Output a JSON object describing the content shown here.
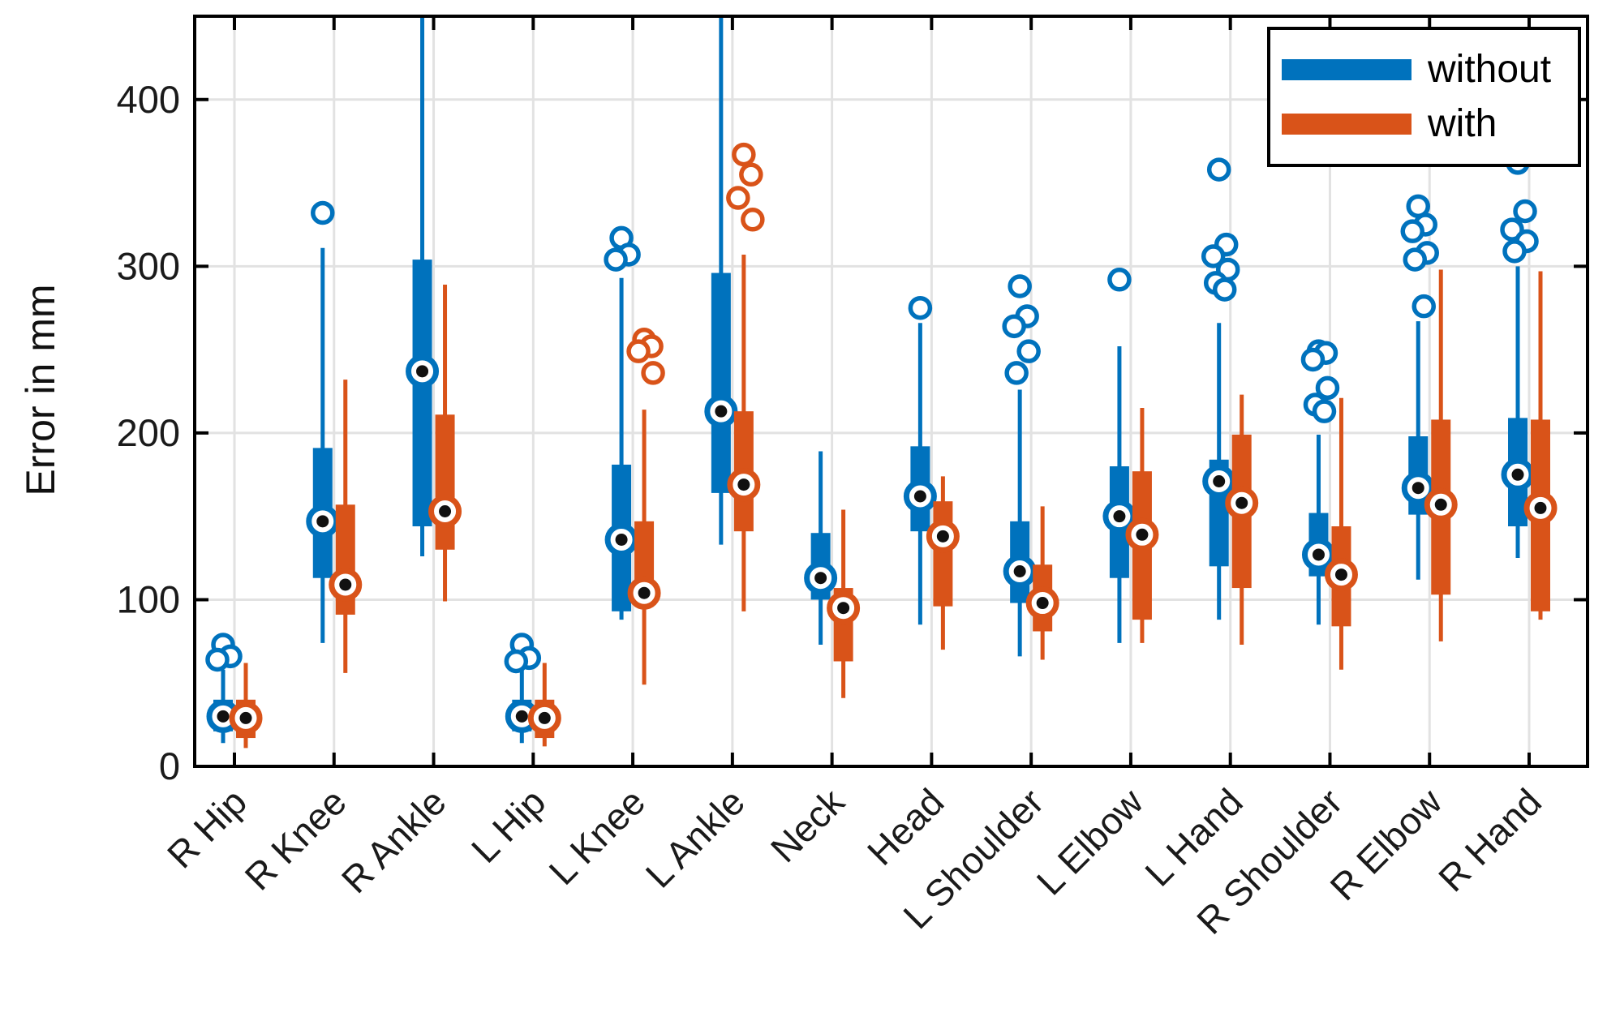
{
  "figure": {
    "background": "#ffffff"
  },
  "chart_data": {
    "type": "boxplot",
    "title": "",
    "xlabel": "",
    "ylabel": "Error in mm",
    "ylim": [
      0,
      450
    ],
    "yticks": [
      0,
      100,
      200,
      300,
      400
    ],
    "grid": true,
    "grid_color": "#e2e2e2",
    "axis_color": "#000000",
    "tick_label_color": "#1a1a1a",
    "categories": [
      "R Hip",
      "R Knee",
      "R Ankle",
      "L Hip",
      "L Knee",
      "L Ankle",
      "Neck",
      "Head",
      "L Shoulder",
      "L Elbow",
      "L Hand",
      "R Shoulder",
      "R Elbow",
      "R Hand"
    ],
    "legend": {
      "position": "top-right",
      "entries": [
        {
          "label": "without",
          "color": "#0072BD"
        },
        {
          "label": "with",
          "color": "#D95319"
        }
      ]
    },
    "series": [
      {
        "name": "without",
        "color": "#0072BD",
        "boxes": [
          {
            "median": 30,
            "q1": 21,
            "q3": 40,
            "whisker_low": 14,
            "whisker_high": 58,
            "outliers": [
              73,
              66,
              64
            ]
          },
          {
            "median": 147,
            "q1": 113,
            "q3": 191,
            "whisker_low": 74,
            "whisker_high": 311,
            "outliers": [
              332
            ]
          },
          {
            "median": 237,
            "q1": 144,
            "q3": 304,
            "whisker_low": 126,
            "whisker_high": 450,
            "clipped_high": true,
            "outliers": []
          },
          {
            "median": 30,
            "q1": 21,
            "q3": 40,
            "whisker_low": 14,
            "whisker_high": 58,
            "outliers": [
              73,
              65,
              63
            ]
          },
          {
            "median": 136,
            "q1": 93,
            "q3": 181,
            "whisker_low": 88,
            "whisker_high": 293,
            "outliers": [
              317,
              307,
              304
            ]
          },
          {
            "median": 213,
            "q1": 164,
            "q3": 296,
            "whisker_low": 133,
            "whisker_high": 450,
            "clipped_high": true,
            "outliers": []
          },
          {
            "median": 113,
            "q1": 100,
            "q3": 140,
            "whisker_low": 73,
            "whisker_high": 189,
            "outliers": []
          },
          {
            "median": 162,
            "q1": 141,
            "q3": 192,
            "whisker_low": 85,
            "whisker_high": 266,
            "outliers": [
              275
            ]
          },
          {
            "median": 117,
            "q1": 98,
            "q3": 147,
            "whisker_low": 66,
            "whisker_high": 226,
            "outliers": [
              288,
              270,
              264,
              249,
              236
            ]
          },
          {
            "median": 150,
            "q1": 113,
            "q3": 180,
            "whisker_low": 74,
            "whisker_high": 252,
            "outliers": [
              292
            ]
          },
          {
            "median": 171,
            "q1": 120,
            "q3": 184,
            "whisker_low": 88,
            "whisker_high": 266,
            "outliers": [
              358,
              313,
              306,
              298,
              290,
              286
            ]
          },
          {
            "median": 127,
            "q1": 114,
            "q3": 152,
            "whisker_low": 85,
            "whisker_high": 199,
            "outliers": [
              249,
              248,
              244,
              227,
              217,
              213
            ]
          },
          {
            "median": 167,
            "q1": 151,
            "q3": 198,
            "whisker_low": 112,
            "whisker_high": 267,
            "outliers": [
              336,
              325,
              321,
              308,
              304,
              276
            ]
          },
          {
            "median": 175,
            "q1": 144,
            "q3": 209,
            "whisker_low": 125,
            "whisker_high": 300,
            "outliers": [
              362,
              333,
              322,
              315,
              309
            ]
          }
        ]
      },
      {
        "name": "with",
        "color": "#D95319",
        "boxes": [
          {
            "median": 29,
            "q1": 17,
            "q3": 40,
            "whisker_low": 11,
            "whisker_high": 62,
            "outliers": []
          },
          {
            "median": 109,
            "q1": 91,
            "q3": 157,
            "whisker_low": 56,
            "whisker_high": 232,
            "outliers": []
          },
          {
            "median": 153,
            "q1": 130,
            "q3": 211,
            "whisker_low": 99,
            "whisker_high": 289,
            "outliers": []
          },
          {
            "median": 29,
            "q1": 17,
            "q3": 40,
            "whisker_low": 12,
            "whisker_high": 62,
            "outliers": []
          },
          {
            "median": 104,
            "q1": 98,
            "q3": 147,
            "whisker_low": 49,
            "whisker_high": 214,
            "outliers": [
              256,
              252,
              249,
              236
            ]
          },
          {
            "median": 169,
            "q1": 141,
            "q3": 213,
            "whisker_low": 93,
            "whisker_high": 307,
            "outliers": [
              367,
              355,
              341,
              328
            ]
          },
          {
            "median": 95,
            "q1": 63,
            "q3": 107,
            "whisker_low": 41,
            "whisker_high": 154,
            "outliers": []
          },
          {
            "median": 138,
            "q1": 96,
            "q3": 159,
            "whisker_low": 70,
            "whisker_high": 174,
            "outliers": []
          },
          {
            "median": 98,
            "q1": 81,
            "q3": 121,
            "whisker_low": 64,
            "whisker_high": 156,
            "outliers": []
          },
          {
            "median": 139,
            "q1": 88,
            "q3": 177,
            "whisker_low": 74,
            "whisker_high": 215,
            "outliers": []
          },
          {
            "median": 158,
            "q1": 107,
            "q3": 199,
            "whisker_low": 73,
            "whisker_high": 223,
            "outliers": []
          },
          {
            "median": 115,
            "q1": 84,
            "q3": 144,
            "whisker_low": 58,
            "whisker_high": 221,
            "outliers": []
          },
          {
            "median": 157,
            "q1": 103,
            "q3": 208,
            "whisker_low": 75,
            "whisker_high": 298,
            "outliers": []
          },
          {
            "median": 155,
            "q1": 93,
            "q3": 208,
            "whisker_low": 88,
            "whisker_high": 297,
            "outliers": []
          }
        ]
      }
    ]
  }
}
